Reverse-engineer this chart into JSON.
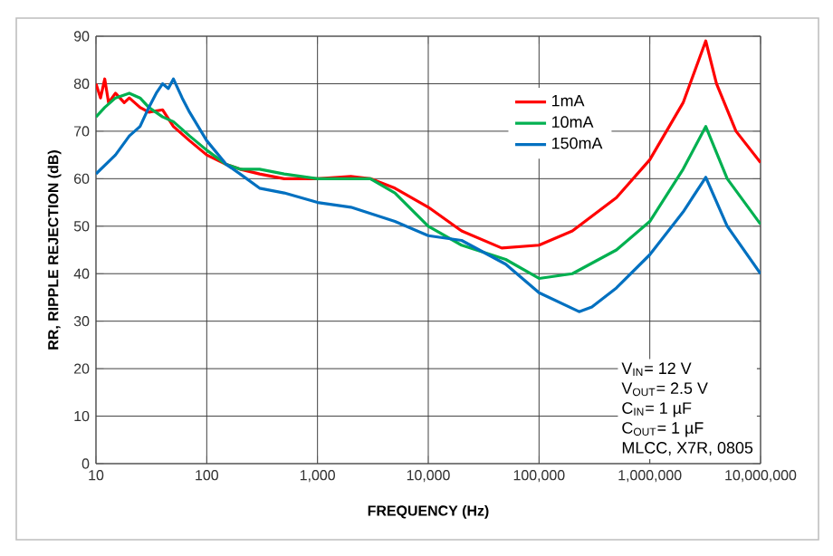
{
  "chart_data": {
    "type": "line",
    "xlabel": "FREQUENCY (Hz)",
    "ylabel": "RR, RIPPLE REJECTION (dB)",
    "log": "x",
    "grid": true,
    "legend": "top right",
    "marker": "none",
    "line_style": "solid",
    "xlim": [
      10,
      10000000
    ],
    "ylim": [
      0,
      90
    ],
    "xticks": [
      10,
      100,
      {
        "value": 1000,
        "label": "1,000"
      },
      {
        "value": 10000,
        "label": "10,000"
      },
      {
        "value": 100000,
        "label": "100,000"
      },
      {
        "value": 1000000,
        "label": "1,000,000"
      },
      {
        "value": 10000000,
        "label": "10,000,000"
      }
    ],
    "yticks": [
      0,
      10,
      20,
      30,
      40,
      50,
      60,
      70,
      80,
      90
    ],
    "series": [
      {
        "name": "1mA",
        "color": "#ff0000",
        "x": [
          10,
          11,
          12,
          13,
          15,
          18,
          20,
          25,
          30,
          40,
          50,
          70,
          100,
          150,
          200,
          300,
          500,
          700,
          1000,
          2000,
          3000,
          5000,
          10000,
          20000,
          46000,
          100000,
          200000,
          500000,
          1000000,
          2000000,
          3200000,
          4000000,
          6000000,
          10000000
        ],
        "values": [
          80,
          77,
          81,
          76,
          78,
          76,
          77,
          75,
          74,
          74.5,
          71,
          68,
          65,
          63,
          62,
          61,
          60,
          60,
          60,
          60.5,
          60,
          58,
          54,
          49,
          45.4,
          46,
          49,
          56,
          64,
          76,
          89,
          80,
          70,
          63.4
        ]
      },
      {
        "name": "10mA",
        "color": "#00b050",
        "x": [
          10,
          12,
          15,
          20,
          25,
          30,
          40,
          50,
          70,
          100,
          150,
          200,
          300,
          500,
          1000,
          2000,
          3000,
          5000,
          10000,
          20000,
          50000,
          100000,
          200000,
          500000,
          1000000,
          2000000,
          3200000,
          5000000,
          10000000
        ],
        "values": [
          73,
          75,
          77,
          78,
          77,
          75,
          73,
          72,
          69,
          66,
          63,
          62,
          62,
          61,
          60,
          60,
          60,
          57,
          50,
          46,
          43,
          39,
          40,
          45,
          51,
          62,
          71,
          60,
          50.4
        ]
      },
      {
        "name": "150mA",
        "color": "#0070c0",
        "x": [
          10,
          15,
          20,
          25,
          30,
          35,
          40,
          45,
          50,
          60,
          70,
          100,
          150,
          200,
          300,
          500,
          1000,
          2000,
          5000,
          10000,
          20000,
          50000,
          100000,
          230000,
          300000,
          500000,
          1000000,
          2000000,
          3200000,
          5000000,
          10000000
        ],
        "values": [
          61,
          65,
          69,
          71,
          75,
          78,
          80,
          79,
          81,
          77,
          74,
          68,
          63,
          61,
          58,
          57,
          55,
          54,
          51,
          48,
          47,
          42,
          36,
          32,
          33,
          37,
          44,
          53,
          60.3,
          50,
          40
        ]
      }
    ],
    "annotations": [
      "V$_{IN}$= 12 V",
      "V$_{OUT}$= 2.5 V",
      "C$_{IN}$= 1 µF",
      "C$_{OUT}$= 1 µF",
      "MLCC, X7R, 0805"
    ]
  }
}
